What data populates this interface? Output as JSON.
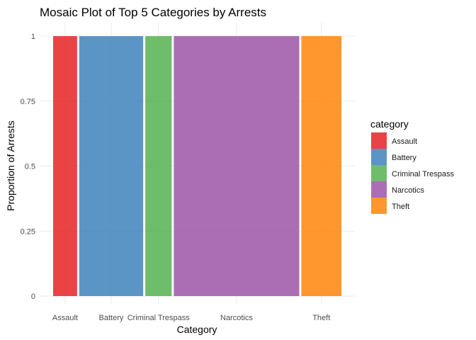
{
  "chart_data": {
    "type": "bar",
    "title": "Mosaic Plot of Top 5 Categories by Arrests",
    "xlabel": "Category",
    "ylabel": "Proportion of Arrests",
    "categories": [
      "Assault",
      "Battery",
      "Criminal Trespass",
      "Narcotics",
      "Theft"
    ],
    "width_share": [
      0.0838,
      0.2235,
      0.0922,
      0.4385,
      0.1399
    ],
    "values": [
      1,
      1,
      1,
      1,
      1
    ],
    "colors": [
      "#e41a1c",
      "#377eb8",
      "#4daf4a",
      "#984ea3",
      "#ff7f00"
    ],
    "ylim": [
      0,
      1
    ],
    "yticks": [
      "0",
      "0.25",
      "0.5",
      "0.75",
      "1"
    ],
    "grid": true,
    "legend": {
      "title": "category",
      "position": "right",
      "entries": [
        "Assault",
        "Battery",
        "Criminal Trespass",
        "Narcotics",
        "Theft"
      ]
    }
  }
}
